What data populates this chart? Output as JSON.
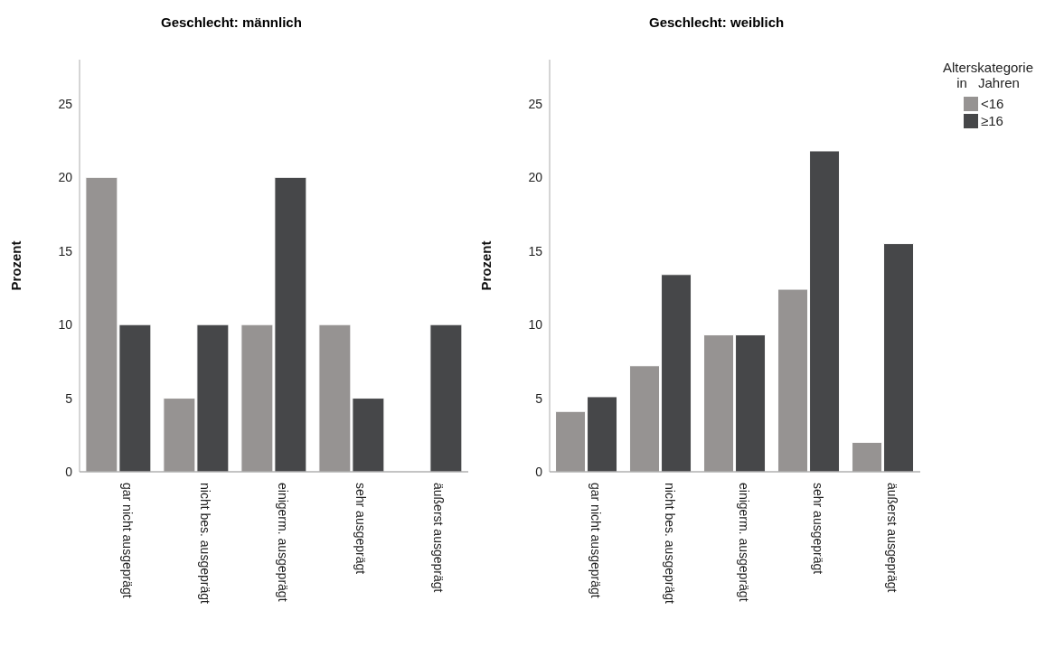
{
  "chart_data": [
    {
      "type": "bar",
      "title": "Geschlecht: männlich",
      "ylabel": "Prozent",
      "categories": [
        "gar nicht ausgeprägt",
        "nicht bes. ausgeprägt",
        "einigerm. ausgeprägt",
        "sehr ausgeprägt",
        "äußerst ausgeprägt"
      ],
      "ylim": [
        0,
        28
      ],
      "yticks": [
        0,
        5,
        10,
        15,
        20,
        25
      ],
      "series": [
        {
          "color": "#969392",
          "values": [
            20,
            5,
            10,
            10,
            0
          ]
        },
        {
          "color": "#464749",
          "values": [
            10,
            10,
            20,
            5,
            10
          ]
        }
      ]
    },
    {
      "type": "bar",
      "title": "Geschlecht: weiblich",
      "ylabel": "Prozent",
      "categories": [
        "gar nicht ausgeprägt",
        "nicht bes. ausgeprägt",
        "einigerm. ausgeprägt",
        "sehr ausgeprägt",
        "äußerst ausgeprägt"
      ],
      "ylim": [
        0,
        28
      ],
      "yticks": [
        0,
        5,
        10,
        15,
        20,
        25
      ],
      "legend": "top right",
      "legend_title": "Alterskategorie in Jahren",
      "series": [
        {
          "name": "<16",
          "color": "#969392",
          "values": [
            4.1,
            7.2,
            9.3,
            12.4,
            2.0
          ]
        },
        {
          "name": "≥16",
          "color": "#464749",
          "values": [
            5.1,
            13.4,
            9.3,
            21.8,
            15.5
          ]
        }
      ]
    }
  ]
}
